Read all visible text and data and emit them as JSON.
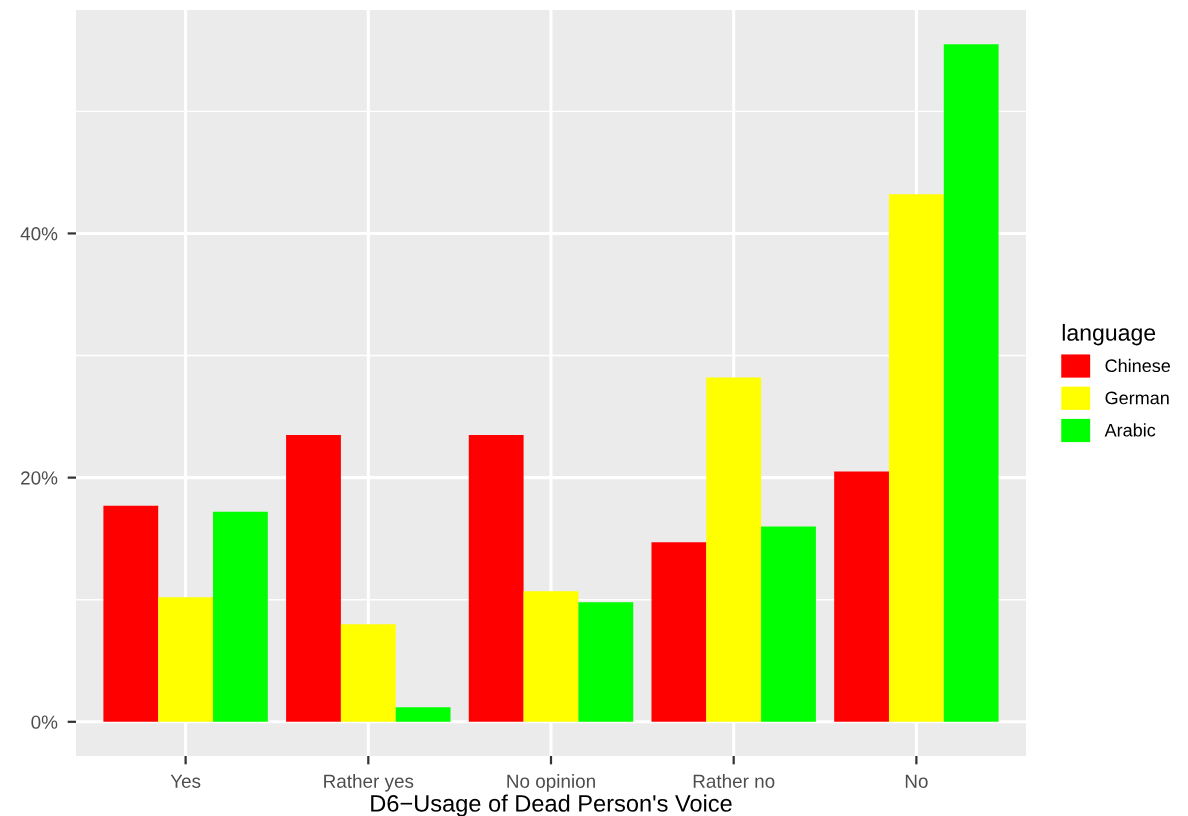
{
  "chart_data": {
    "type": "bar",
    "xlabel": "D6−Usage of Dead Person's Voice",
    "legend_title": "language",
    "categories": [
      "Yes",
      "Rather yes",
      "No opinion",
      "Rather no",
      "No"
    ],
    "series": [
      {
        "name": "Chinese",
        "color": "#ff0000",
        "values": [
          17.7,
          23.5,
          23.5,
          14.7,
          20.5
        ]
      },
      {
        "name": "German",
        "color": "#ffff00",
        "values": [
          10.2,
          8.0,
          10.7,
          28.2,
          43.2
        ]
      },
      {
        "name": "Arabic",
        "color": "#00ff00",
        "values": [
          17.2,
          1.2,
          9.8,
          16.0,
          55.5
        ]
      }
    ],
    "ylim": [
      -2.8,
      58.3
    ],
    "yticks": [
      {
        "value": 0,
        "label": "0%"
      },
      {
        "value": 20,
        "label": "20%"
      },
      {
        "value": 40,
        "label": "40%"
      }
    ],
    "grid": true,
    "legend": "right"
  }
}
